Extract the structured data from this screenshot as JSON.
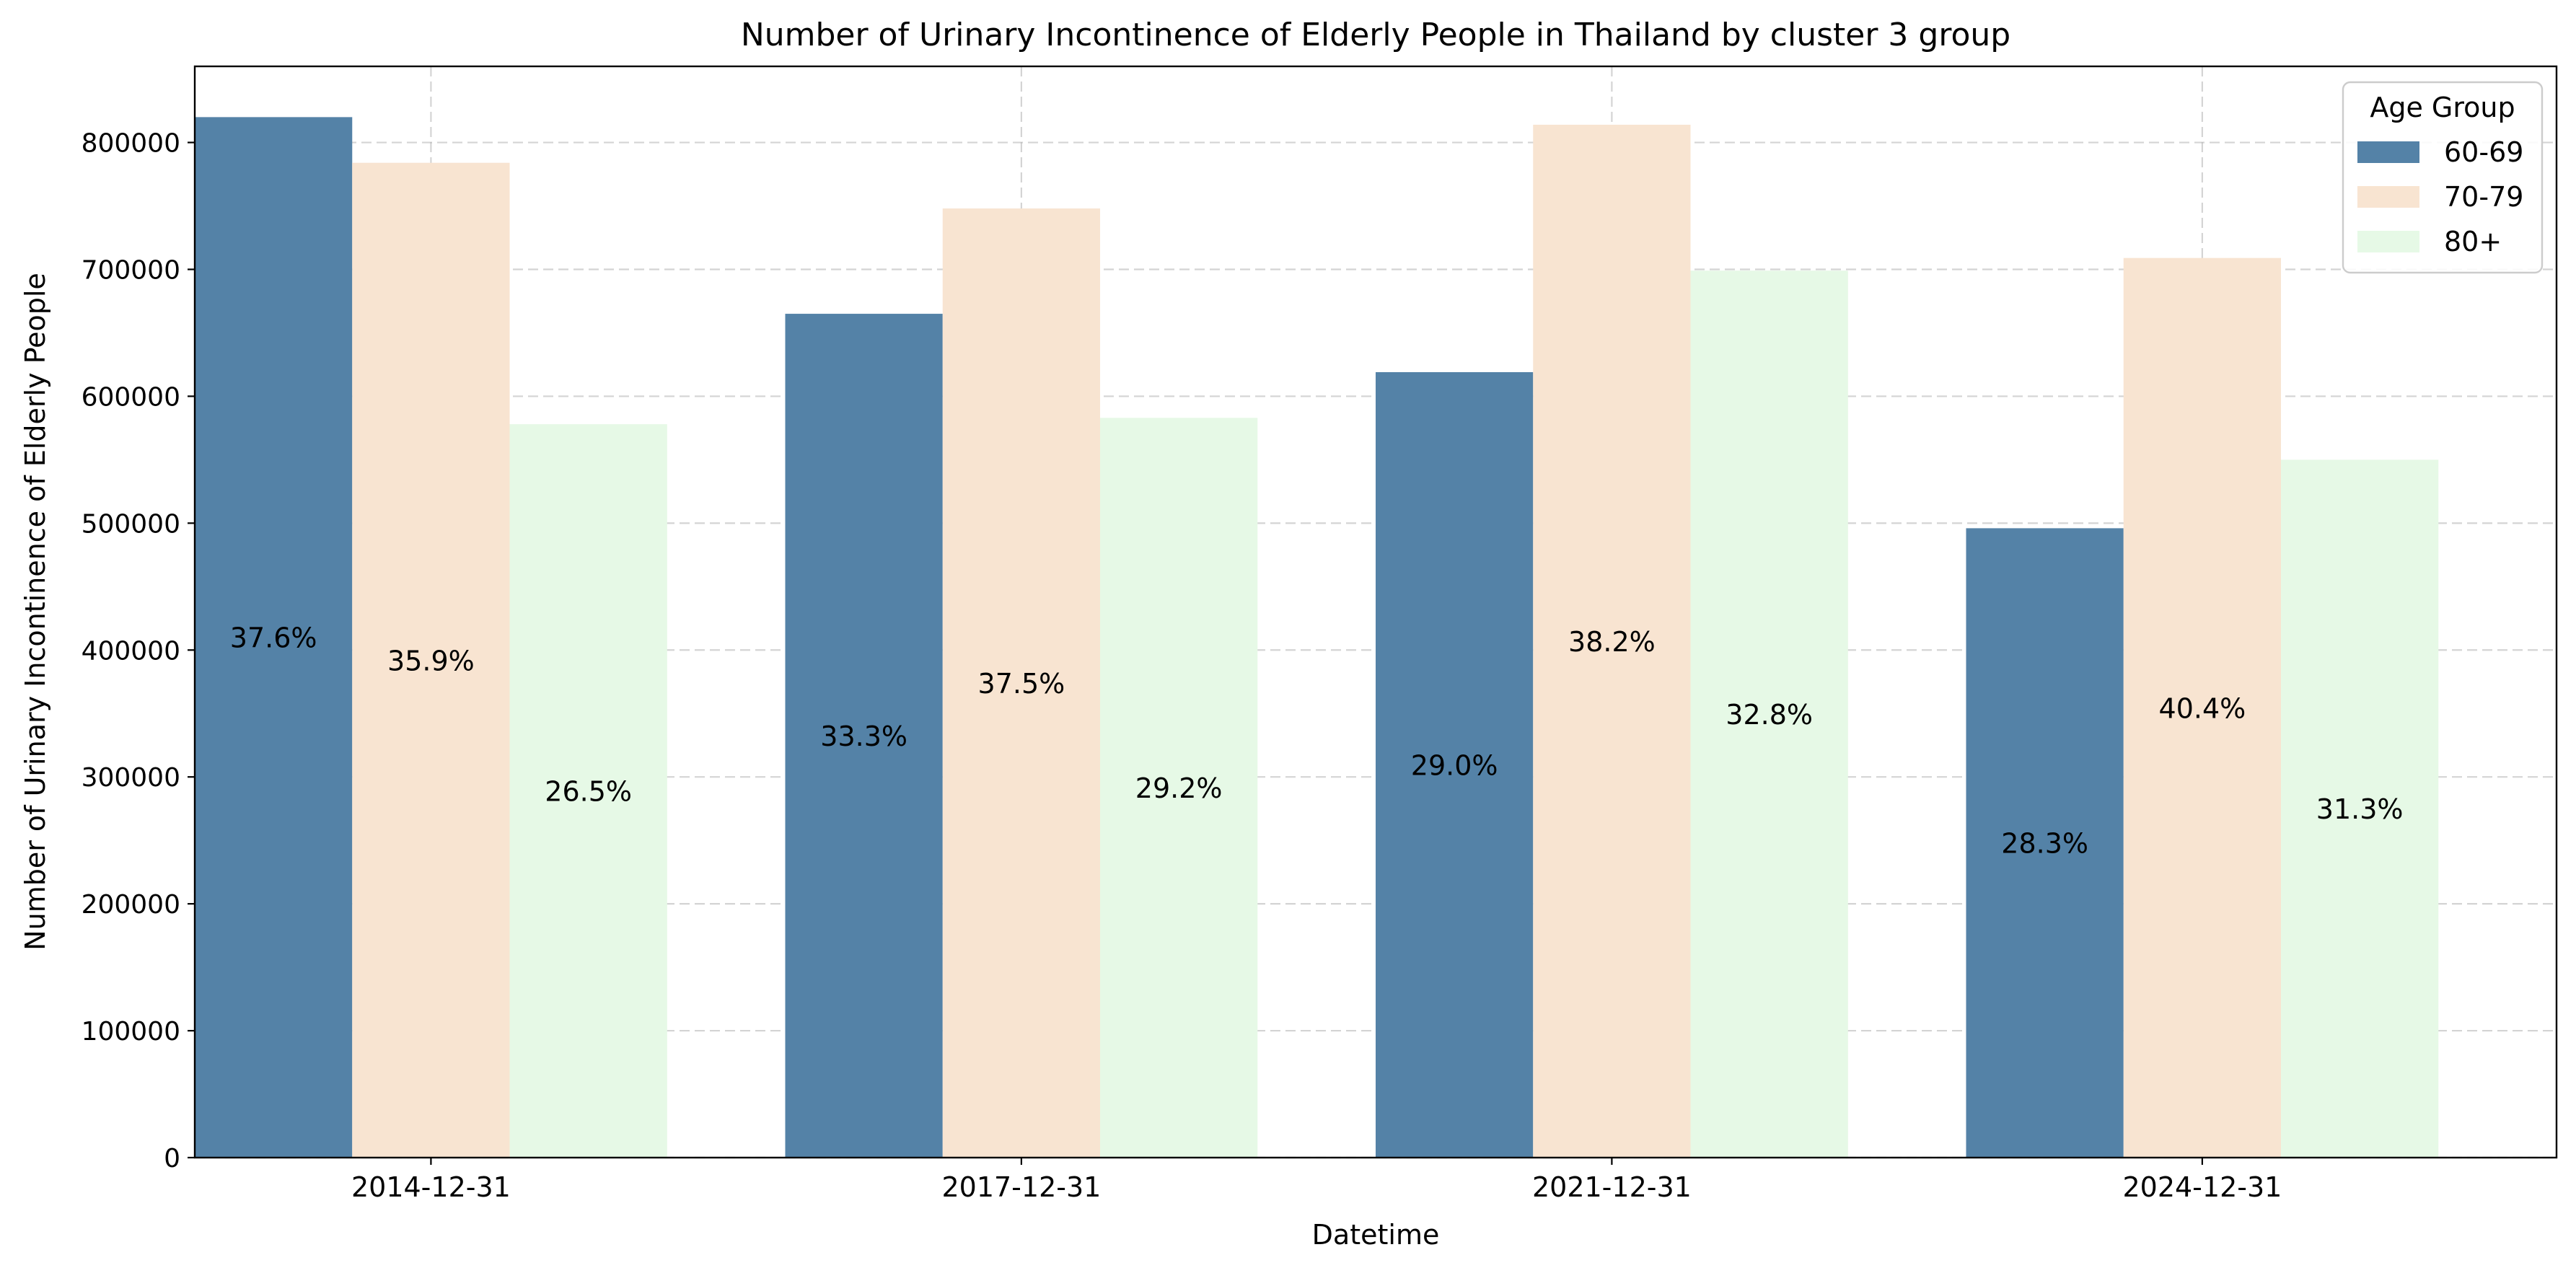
{
  "chart_data": {
    "type": "bar",
    "title": "Number of Urinary Incontinence of Elderly People in Thailand by cluster 3 group",
    "xlabel": "Datetime",
    "ylabel": "Number of Urinary Incontinence of Elderly People",
    "categories": [
      "2014-12-31",
      "2017-12-31",
      "2021-12-31",
      "2024-12-31"
    ],
    "ylim": [
      0,
      860000
    ],
    "yticks": [
      0,
      100000,
      200000,
      300000,
      400000,
      500000,
      600000,
      700000,
      800000
    ],
    "ytick_labels": [
      "0",
      "100000",
      "200000",
      "300000",
      "400000",
      "500000",
      "600000",
      "700000",
      "800000"
    ],
    "grid": true,
    "legend": {
      "title": "Age Group",
      "position": "top-right"
    },
    "series": [
      {
        "name": "60-69",
        "color": "#5482a7",
        "values": [
          820000,
          665000,
          619000,
          496000
        ],
        "labels": [
          "37.6%",
          "33.3%",
          "29.0%",
          "28.3%"
        ]
      },
      {
        "name": "70-79",
        "color": "#f8e4d1",
        "values": [
          784000,
          748000,
          814000,
          709000
        ],
        "labels": [
          "35.9%",
          "37.5%",
          "38.2%",
          "40.4%"
        ]
      },
      {
        "name": "80+",
        "color": "#e6f9e6",
        "values": [
          578000,
          583000,
          699000,
          550000
        ],
        "labels": [
          "26.5%",
          "29.2%",
          "32.8%",
          "31.3%"
        ]
      }
    ]
  }
}
